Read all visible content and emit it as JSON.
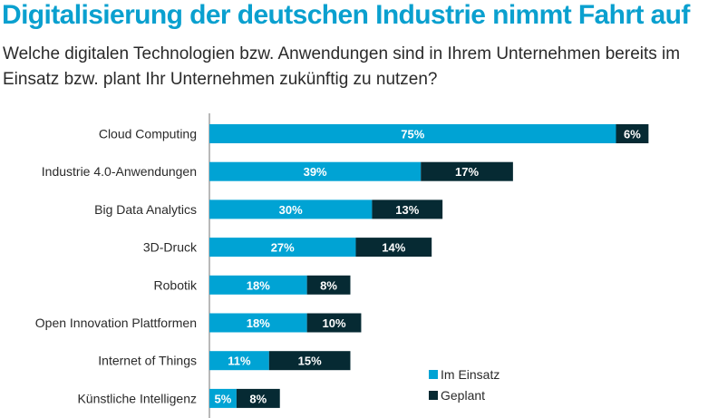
{
  "chart_data": {
    "type": "bar",
    "orientation": "horizontal",
    "stacked": true,
    "title": "Digitalisierung der deutschen Industrie nimmt Fahrt auf",
    "subtitle": "Welche digitalen Technologien bzw. Anwendungen sind in Ihrem Unternehmen bereits im Einsatz bzw. plant Ihr Unternehmen zukünftig zu nutzen?",
    "xlabel": "",
    "ylabel": "",
    "xlim": [
      0,
      81
    ],
    "grid": false,
    "legend_position": "bottom-right",
    "categories": [
      "Cloud Computing",
      "Industrie 4.0-Anwendungen",
      "Big Data Analytics",
      "3D-Druck",
      "Robotik",
      "Open Innovation Plattformen",
      "Internet of Things",
      "Künstliche Intelligenz"
    ],
    "series": [
      {
        "name": "Im Einsatz",
        "color": "#00a3d4",
        "values": [
          75,
          39,
          30,
          27,
          18,
          18,
          11,
          5
        ]
      },
      {
        "name": "Geplant",
        "color": "#062a33",
        "values": [
          6,
          17,
          13,
          14,
          8,
          10,
          15,
          8
        ]
      }
    ],
    "value_suffix": "%"
  }
}
